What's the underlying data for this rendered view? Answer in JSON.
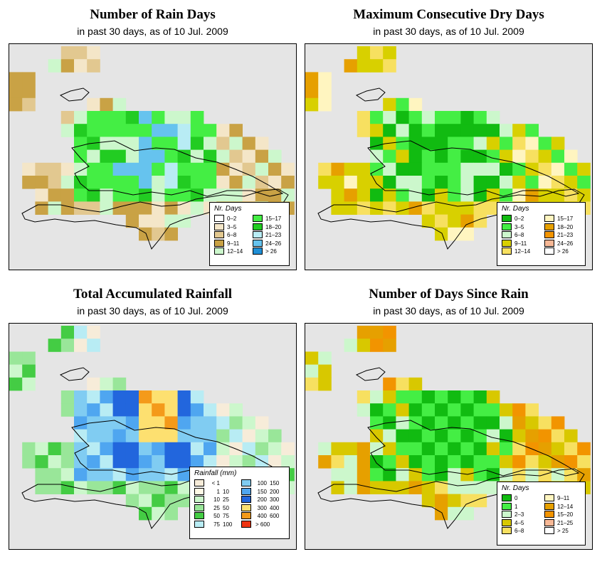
{
  "panels": [
    {
      "id": "p-rain-days",
      "title": "Number of Rain Days",
      "subtitle": "in past 30 days, as of  10 Jul. 2009",
      "legend": {
        "title": "Nr. Days",
        "items": [
          {
            "label": "0–2",
            "color": "#ffffff"
          },
          {
            "label": "3–5",
            "color": "#f4e6c8"
          },
          {
            "label": "6–8",
            "color": "#e2c890"
          },
          {
            "label": "9–11",
            "color": "#c9a245"
          },
          {
            "label": "12–14",
            "color": "#ccf7cc"
          },
          {
            "label": "15–17",
            "color": "#44ee44"
          },
          {
            "label": "18–20",
            "color": "#22cc22"
          },
          {
            "label": "21–23",
            "color": "#b8ecf4"
          },
          {
            "label": "24–26",
            "color": "#66c3ee"
          },
          {
            "label": "> 26",
            "color": "#1f8fd6"
          }
        ]
      }
    },
    {
      "id": "p-dry-days",
      "title": "Maximum Consecutive Dry Days",
      "subtitle": "in past 30 days, as of  10 Jul. 2009",
      "legend": {
        "title": "Nr. Days",
        "items": [
          {
            "label": "0–2",
            "color": "#11bb11"
          },
          {
            "label": "3–5",
            "color": "#44ee44"
          },
          {
            "label": "6–8",
            "color": "#ccf7cc"
          },
          {
            "label": "9–11",
            "color": "#d8d000"
          },
          {
            "label": "12–14",
            "color": "#f7e060"
          },
          {
            "label": "15–17",
            "color": "#fff5c0"
          },
          {
            "label": "18–20",
            "color": "#e6a000"
          },
          {
            "label": "21–23",
            "color": "#f29400"
          },
          {
            "label": "24–26",
            "color": "#f7b896"
          },
          {
            "label": "> 26",
            "color": "#ffffff"
          }
        ]
      }
    },
    {
      "id": "p-total-rain",
      "title": "Total Accumulated Rainfall",
      "subtitle": "in past 30 days, as of  10 Jul. 2009",
      "legend": {
        "title": "Rainfall (mm)",
        "items": [
          {
            "a": "< 1",
            "b": "",
            "color": "#f7ecd9"
          },
          {
            "a": "1",
            "b": "10",
            "color": "#fff9e6"
          },
          {
            "a": "10",
            "b": "25",
            "color": "#ccf7cc"
          },
          {
            "a": "25",
            "b": "50",
            "color": "#99e699"
          },
          {
            "a": "50",
            "b": "75",
            "color": "#44cc44"
          },
          {
            "a": "75",
            "b": "100",
            "color": "#b8ecf4"
          },
          {
            "a": "100",
            "b": "150",
            "color": "#80ccf2"
          },
          {
            "a": "150",
            "b": "200",
            "color": "#4fa6f0"
          },
          {
            "a": "200",
            "b": "300",
            "color": "#2266dd"
          },
          {
            "a": "300",
            "b": "400",
            "color": "#fde070"
          },
          {
            "a": "400",
            "b": "600",
            "color": "#f49a1a"
          },
          {
            "a": "> 600",
            "b": "",
            "color": "#ee3311"
          }
        ]
      }
    },
    {
      "id": "p-days-since",
      "title": "Number of Days Since Rain",
      "subtitle": "in past 30 days, as of  10 Jul. 2009",
      "legend": {
        "title": "Nr. Days",
        "items": [
          {
            "label": "0",
            "color": "#11bb11"
          },
          {
            "label": "1",
            "color": "#44ee44"
          },
          {
            "label": "2–3",
            "color": "#ccf7cc"
          },
          {
            "label": "4–5",
            "color": "#d8c800"
          },
          {
            "label": "6–8",
            "color": "#f7e060"
          },
          {
            "label": "9–11",
            "color": "#fff5c0"
          },
          {
            "label": "12–14",
            "color": "#e6a000"
          },
          {
            "label": "15–20",
            "color": "#f29400"
          },
          {
            "label": "21–25",
            "color": "#f7b896"
          },
          {
            "label": "> 25",
            "color": "#ffffff"
          }
        ]
      }
    }
  ],
  "colors": {
    "map_background": "#e5e5e5",
    "coastline": "#000000"
  }
}
